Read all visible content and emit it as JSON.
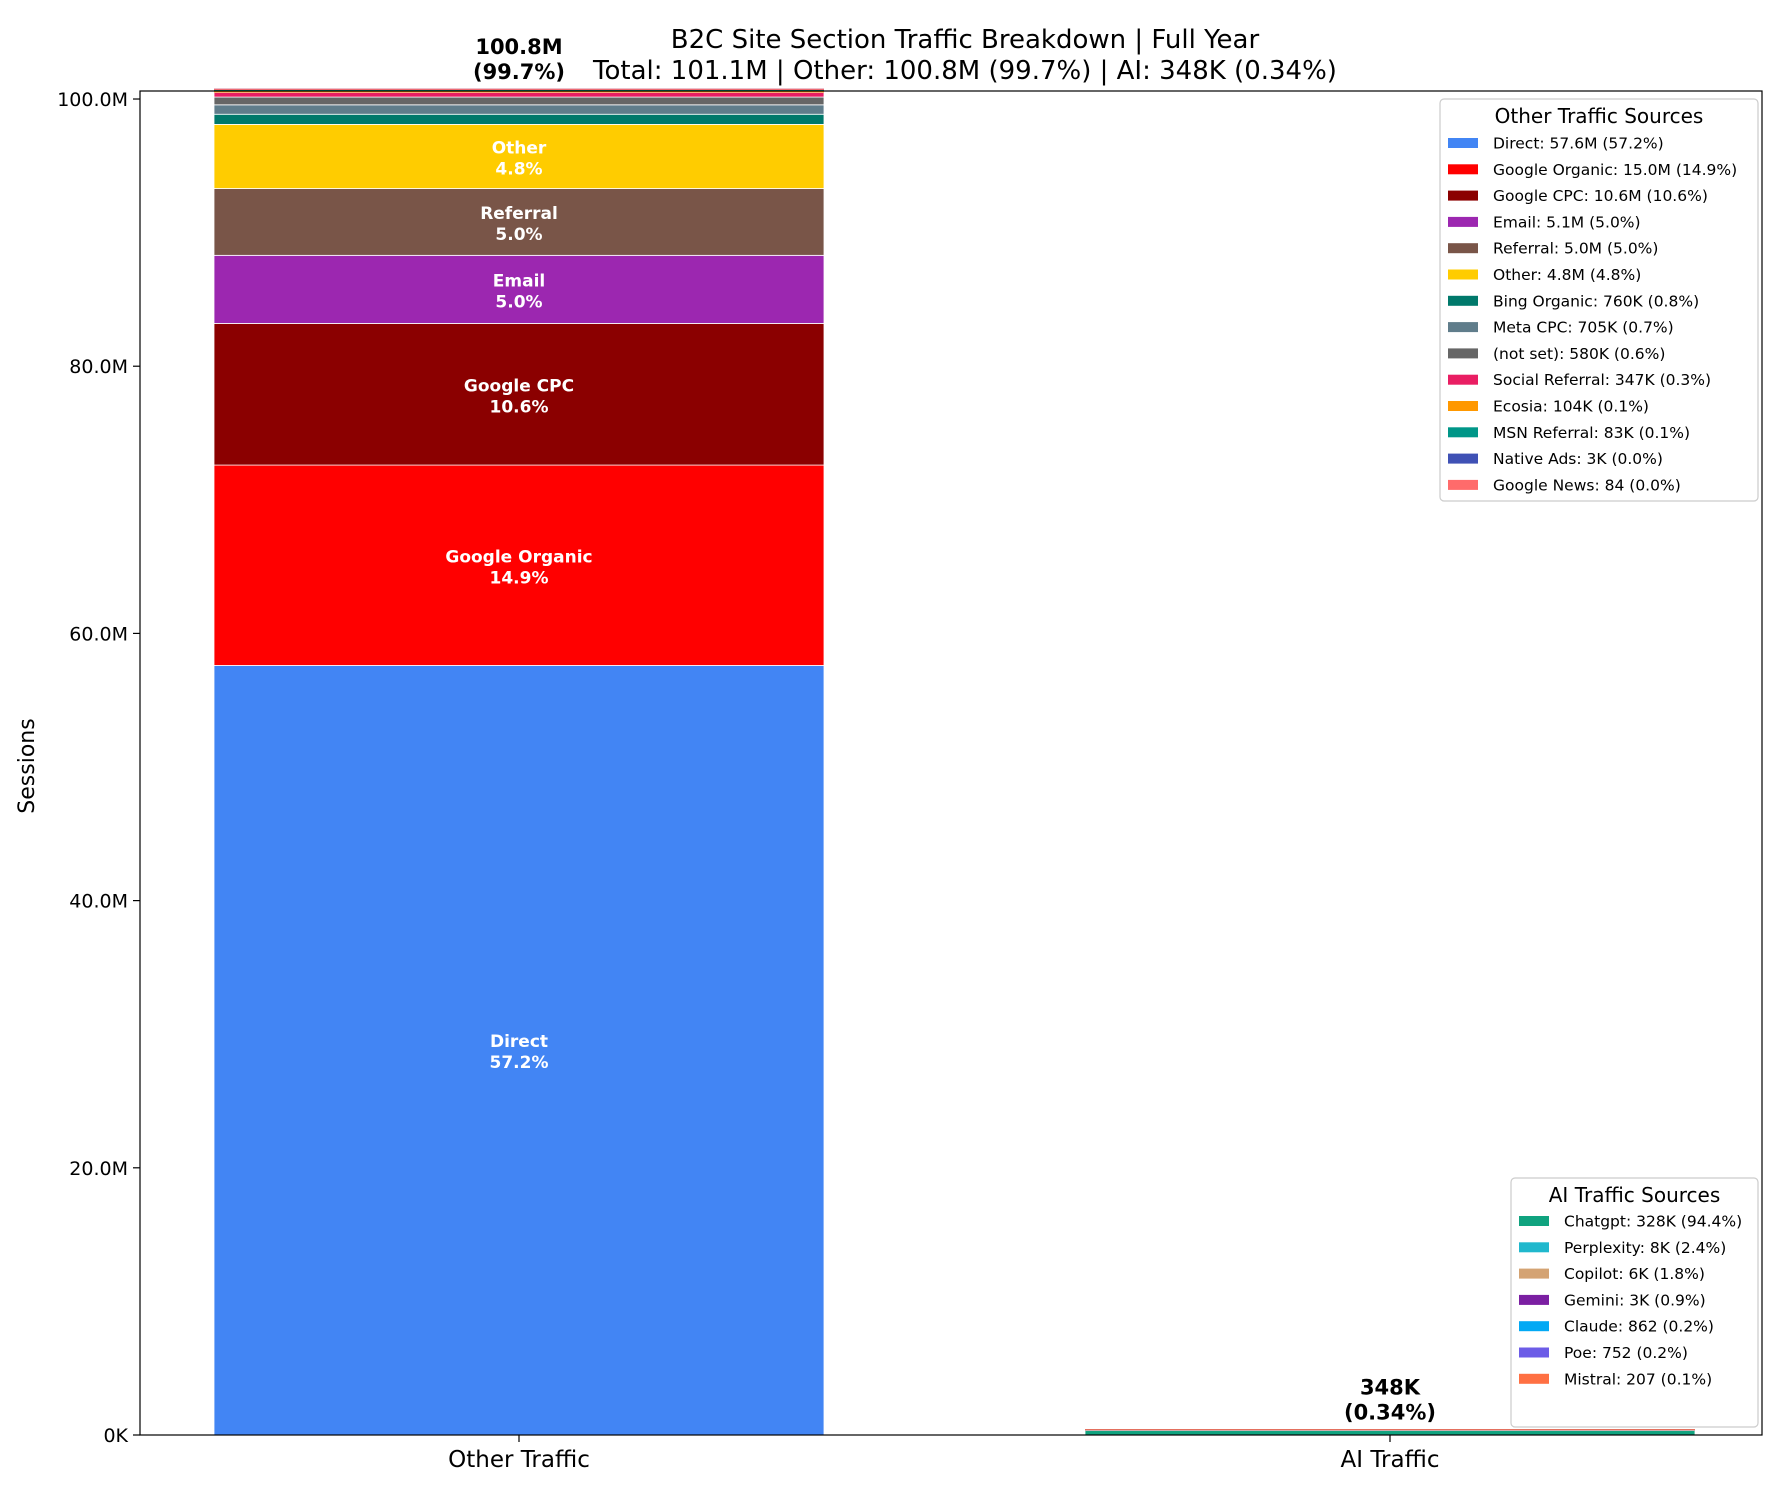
{
  "chart_data": {
    "type": "bar",
    "stacked": true,
    "title": "B2C Site Section Traffic Breakdown | Full Year",
    "subtitle": "Total: 101.1M | Other: 100.8M (99.7%) | AI: 348K (0.34%)",
    "xlabel": "",
    "ylabel": "Sessions",
    "ylim": [
      0,
      100600000
    ],
    "yticks": [
      {
        "value": 0,
        "label": "0K"
      },
      {
        "value": 20000000,
        "label": "20.0M"
      },
      {
        "value": 40000000,
        "label": "40.0M"
      },
      {
        "value": 60000000,
        "label": "60.0M"
      },
      {
        "value": 80000000,
        "label": "80.0M"
      },
      {
        "value": 100000000,
        "label": "100.0M"
      }
    ],
    "categories": [
      "Other Traffic",
      "AI Traffic"
    ],
    "bars": [
      {
        "category": "Other Traffic",
        "total_label": "100.8M",
        "total_pct_label": "(99.7%)",
        "segments": [
          {
            "name": "Direct",
            "value": 57600000,
            "color": "#4285F4",
            "inner_label": "Direct",
            "pct": "57.2%"
          },
          {
            "name": "Google Organic",
            "value": 15000000,
            "color": "#FF0000",
            "inner_label": "Google Organic",
            "pct": "14.9%"
          },
          {
            "name": "Google CPC",
            "value": 10600000,
            "color": "#8B0000",
            "inner_label": "Google CPC",
            "pct": "10.6%"
          },
          {
            "name": "Email",
            "value": 5100000,
            "color": "#9C27B0",
            "inner_label": "Email",
            "pct": "5.0%"
          },
          {
            "name": "Referral",
            "value": 5000000,
            "color": "#795548",
            "inner_label": "Referral",
            "pct": "5.0%"
          },
          {
            "name": "Other",
            "value": 4800000,
            "color": "#FFCC00",
            "inner_label": "Other",
            "pct": "4.8%"
          },
          {
            "name": "Bing Organic",
            "value": 760000,
            "color": "#00796B"
          },
          {
            "name": "Meta CPC",
            "value": 705000,
            "color": "#607D8B"
          },
          {
            "name": "(not set)",
            "value": 580000,
            "color": "#666666"
          },
          {
            "name": "Social Referral",
            "value": 347000,
            "color": "#E91E63"
          },
          {
            "name": "Ecosia",
            "value": 104000,
            "color": "#FF9800"
          },
          {
            "name": "MSN Referral",
            "value": 83000,
            "color": "#009688"
          },
          {
            "name": "Native Ads",
            "value": 3000,
            "color": "#3F51B5"
          },
          {
            "name": "Google News",
            "value": 84,
            "color": "#FF6B6B"
          }
        ]
      },
      {
        "category": "AI Traffic",
        "total_label": "348K",
        "total_pct_label": "(0.34%)",
        "segments": [
          {
            "name": "Chatgpt",
            "value": 328000,
            "color": "#10A37F"
          },
          {
            "name": "Perplexity",
            "value": 8000,
            "color": "#20B8CD"
          },
          {
            "name": "Copilot",
            "value": 6000,
            "color": "#D4A373"
          },
          {
            "name": "Gemini",
            "value": 3000,
            "color": "#7B1FA2"
          },
          {
            "name": "Claude",
            "value": 862,
            "color": "#03A9F4"
          },
          {
            "name": "Poe",
            "value": 752,
            "color": "#6C5CE7"
          },
          {
            "name": "Mistral",
            "value": 207,
            "color": "#FF7043"
          }
        ]
      }
    ],
    "legends": [
      {
        "title": "Other Traffic Sources",
        "placement": "top-right",
        "entries": [
          {
            "label": "Direct: 57.6M (57.2%)",
            "color": "#4285F4"
          },
          {
            "label": "Google Organic: 15.0M (14.9%)",
            "color": "#FF0000"
          },
          {
            "label": "Google CPC: 10.6M (10.6%)",
            "color": "#8B0000"
          },
          {
            "label": "Email: 5.1M (5.0%)",
            "color": "#9C27B0"
          },
          {
            "label": "Referral: 5.0M (5.0%)",
            "color": "#795548"
          },
          {
            "label": "Other: 4.8M (4.8%)",
            "color": "#FFCC00"
          },
          {
            "label": "Bing Organic: 760K (0.8%)",
            "color": "#00796B"
          },
          {
            "label": "Meta CPC: 705K (0.7%)",
            "color": "#607D8B"
          },
          {
            "label": "(not set): 580K (0.6%)",
            "color": "#666666"
          },
          {
            "label": "Social Referral: 347K (0.3%)",
            "color": "#E91E63"
          },
          {
            "label": "Ecosia: 104K (0.1%)",
            "color": "#FF9800"
          },
          {
            "label": "MSN Referral: 83K (0.1%)",
            "color": "#009688"
          },
          {
            "label": "Native Ads: 3K (0.0%)",
            "color": "#3F51B5"
          },
          {
            "label": "Google News: 84 (0.0%)",
            "color": "#FF6B6B"
          }
        ]
      },
      {
        "title": "AI Traffic Sources",
        "placement": "bottom-right",
        "entries": [
          {
            "label": "Chatgpt: 328K (94.4%)",
            "color": "#10A37F"
          },
          {
            "label": "Perplexity: 8K (2.4%)",
            "color": "#20B8CD"
          },
          {
            "label": "Copilot: 6K (1.8%)",
            "color": "#D4A373"
          },
          {
            "label": "Gemini: 3K (0.9%)",
            "color": "#7B1FA2"
          },
          {
            "label": "Claude: 862 (0.2%)",
            "color": "#03A9F4"
          },
          {
            "label": "Poe: 752 (0.2%)",
            "color": "#6C5CE7"
          },
          {
            "label": "Mistral: 207 (0.1%)",
            "color": "#FF7043"
          }
        ]
      }
    ]
  }
}
